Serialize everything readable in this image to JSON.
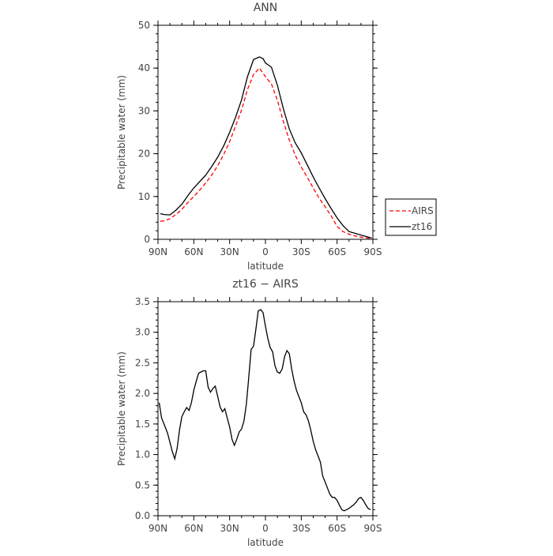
{
  "chart_data": [
    {
      "type": "line",
      "title": "ANN",
      "xlabel": "latitude",
      "ylabel": "Precipitable water (mm)",
      "x_ticks": [
        90,
        60,
        30,
        0,
        -30,
        -60,
        -90
      ],
      "x_tick_labels": [
        "90N",
        "60N",
        "30N",
        "0",
        "30S",
        "60S",
        "90S"
      ],
      "xlim": [
        90,
        -90
      ],
      "ylim": [
        0,
        50
      ],
      "y_ticks": [
        0,
        10,
        20,
        30,
        40,
        50
      ],
      "y_tick_labels": [
        "0",
        "10",
        "20",
        "30",
        "40",
        "50"
      ],
      "legend_position": "outside-right",
      "series": [
        {
          "name": "AIRS",
          "color": "#ff0000",
          "dash": "dashed",
          "x": [
            88,
            85,
            80,
            75,
            70,
            65,
            60,
            55,
            50,
            45,
            40,
            35,
            30,
            25,
            20,
            15,
            10,
            5,
            0,
            -2,
            -5,
            -10,
            -15,
            -20,
            -25,
            -30,
            -35,
            -40,
            -45,
            -50,
            -55,
            -60,
            -65,
            -70,
            -75,
            -80,
            -85,
            -89
          ],
          "y": [
            4.2,
            4.3,
            4.8,
            5.8,
            7.0,
            8.6,
            10.0,
            11.5,
            13.2,
            15.0,
            17.2,
            19.8,
            22.8,
            26.5,
            30.2,
            35.0,
            38.5,
            40.0,
            38.0,
            37.3,
            36.3,
            32.5,
            27.5,
            23.2,
            19.6,
            16.9,
            14.5,
            12.0,
            9.6,
            7.6,
            5.5,
            3.0,
            1.8,
            1.2,
            0.8,
            0.5,
            0.3,
            0.2
          ]
        },
        {
          "name": "zt16",
          "color": "#000000",
          "dash": "solid",
          "x": [
            88,
            85,
            80,
            75,
            70,
            65,
            60,
            55,
            50,
            45,
            40,
            35,
            30,
            25,
            20,
            15,
            10,
            5,
            2,
            0,
            -3,
            -5,
            -10,
            -15,
            -20,
            -25,
            -30,
            -35,
            -40,
            -45,
            -50,
            -55,
            -60,
            -65,
            -70,
            -75,
            -80,
            -85,
            -89
          ],
          "y": [
            6.0,
            5.8,
            5.7,
            6.8,
            8.2,
            10.2,
            12.0,
            13.5,
            15.0,
            17.0,
            19.2,
            21.8,
            25.0,
            28.5,
            32.6,
            38.0,
            42.0,
            42.6,
            42.2,
            41.2,
            40.6,
            40.2,
            36.0,
            30.5,
            25.8,
            22.5,
            20.2,
            17.4,
            14.6,
            12.0,
            9.5,
            7.2,
            5.0,
            3.2,
            1.8,
            1.4,
            1.0,
            0.6,
            0.3
          ]
        }
      ]
    },
    {
      "type": "line",
      "title": "zt16 − AIRS",
      "xlabel": "latitude",
      "ylabel": "Precipitable water (mm)",
      "x_ticks": [
        90,
        60,
        30,
        0,
        -30,
        -60,
        -90
      ],
      "x_tick_labels": [
        "90N",
        "60N",
        "30N",
        "0",
        "30S",
        "60S",
        "90S"
      ],
      "xlim": [
        90,
        -90
      ],
      "ylim": [
        0,
        3.5
      ],
      "y_ticks": [
        0,
        0.5,
        1.0,
        1.5,
        2.0,
        2.5,
        3.0,
        3.5
      ],
      "y_tick_labels": [
        "0.0",
        "0.5",
        "1.0",
        "1.5",
        "2.0",
        "2.5",
        "3.0",
        "3.5"
      ],
      "series": [
        {
          "name": "",
          "color": "#000000",
          "dash": "solid",
          "x": [
            89,
            87,
            85,
            82,
            80,
            78,
            76,
            74,
            72,
            70,
            68,
            66,
            64,
            62,
            60,
            58,
            56,
            54,
            52,
            50,
            48,
            46,
            44,
            42,
            40,
            38,
            36,
            34,
            32,
            30,
            28,
            26,
            24,
            22,
            20,
            18,
            16,
            14,
            12,
            10,
            8,
            6,
            4,
            2,
            0,
            -2,
            -4,
            -6,
            -8,
            -10,
            -12,
            -14,
            -16,
            -18,
            -20,
            -22,
            -24,
            -26,
            -28,
            -30,
            -32,
            -34,
            -36,
            -38,
            -40,
            -42,
            -44,
            -46,
            -48,
            -50,
            -52,
            -54,
            -56,
            -58,
            -60,
            -62,
            -64,
            -66,
            -68,
            -70,
            -72,
            -74,
            -76,
            -78,
            -80,
            -82,
            -84,
            -86,
            -88
          ],
          "y": [
            1.85,
            1.6,
            1.5,
            1.35,
            1.2,
            1.05,
            0.93,
            1.1,
            1.4,
            1.62,
            1.7,
            1.77,
            1.72,
            1.85,
            2.05,
            2.2,
            2.33,
            2.35,
            2.37,
            2.37,
            2.1,
            2.02,
            2.08,
            2.12,
            1.95,
            1.78,
            1.7,
            1.75,
            1.6,
            1.45,
            1.25,
            1.15,
            1.25,
            1.37,
            1.42,
            1.55,
            1.82,
            2.25,
            2.72,
            2.77,
            3.05,
            3.35,
            3.37,
            3.32,
            3.1,
            2.9,
            2.75,
            2.68,
            2.45,
            2.35,
            2.33,
            2.4,
            2.6,
            2.7,
            2.65,
            2.4,
            2.2,
            2.05,
            1.95,
            1.85,
            1.7,
            1.65,
            1.55,
            1.4,
            1.22,
            1.08,
            0.98,
            0.88,
            0.65,
            0.55,
            0.45,
            0.35,
            0.3,
            0.3,
            0.25,
            0.17,
            0.1,
            0.08,
            0.1,
            0.12,
            0.15,
            0.18,
            0.22,
            0.28,
            0.3,
            0.25,
            0.18,
            0.12,
            0.1
          ]
        }
      ]
    }
  ]
}
